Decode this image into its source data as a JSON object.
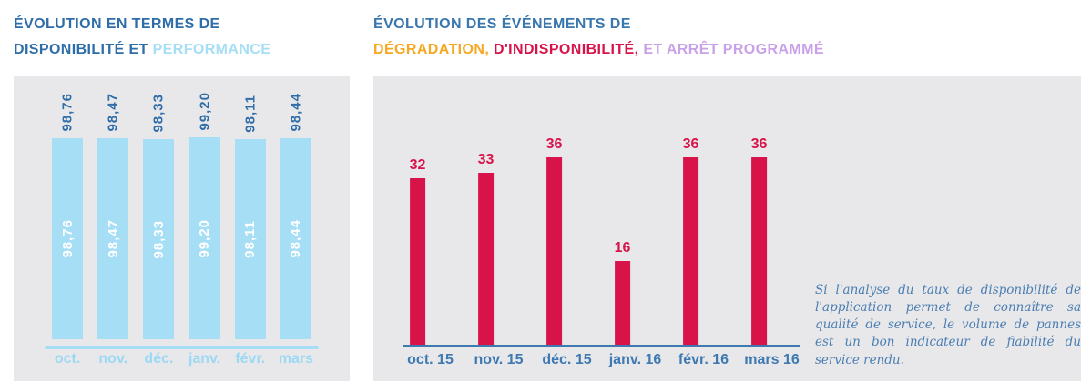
{
  "titles": {
    "left": {
      "line1": "ÉVOLUTION EN TERMES DE",
      "line2_dark": "DISPONIBILITÉ ET ",
      "line2_light": "PERFORMANCE"
    },
    "right": {
      "line1": "ÉVOLUTION DES ÉVÉNEMENTS DE",
      "seg_orange": "DÉGRADATION, ",
      "seg_red": "D'INDISPONIBILITÉ, ",
      "seg_purple": "ET ARRÊT PROGRAMMÉ"
    }
  },
  "chart_data": [
    {
      "type": "bar",
      "title": "ÉVOLUTION EN TERMES DE DISPONIBILITÉ ET PERFORMANCE",
      "categories": [
        "oct.",
        "nov.",
        "déc.",
        "janv.",
        "févr.",
        "mars"
      ],
      "values": [
        98.76,
        98.47,
        98.33,
        99.2,
        98.11,
        98.44
      ],
      "value_labels": [
        "98,76",
        "98,47",
        "98,33",
        "99,20",
        "98,11",
        "98,44"
      ],
      "value_label_style": "rotated 90°, repeated above bar in dark blue and inside bar in white",
      "ylim": [
        0,
        100
      ],
      "grid": false,
      "legend": "none",
      "bar_color": "#a6def5",
      "value_label_color": "#2f6da9",
      "inside_label_color": "#ffffff",
      "axis_line_color": "#a6def5",
      "tick_label_color": "#9bd9f4"
    },
    {
      "type": "bar",
      "title": "ÉVOLUTION DES ÉVÉNEMENTS DE DÉGRADATION, D'INDISPONIBILITÉ, ET ARRÊT PROGRAMMÉ",
      "categories": [
        "oct. 15",
        "nov. 15",
        "déc. 15",
        "janv. 16",
        "févr. 16",
        "mars 16"
      ],
      "values": [
        32,
        33,
        36,
        16,
        36,
        36
      ],
      "value_labels": [
        "32",
        "33",
        "36",
        "16",
        "36",
        "36"
      ],
      "value_label_style": "horizontal, above bar, red bold",
      "ylim": [
        0,
        40
      ],
      "grid": false,
      "legend": "none",
      "bar_color": "#d8134a",
      "value_label_color": "#d8134a",
      "axis_line_color": "#3e79b2",
      "tick_label_color": "#3e79b2"
    }
  ],
  "note": {
    "text": "Si l'analyse du taux de disponibilité de l'application permet de connaître sa qualité de service, le volume de pannes est un bon indicateur de fiabilité du service rendu."
  },
  "colors": {
    "panel_bg": "#e8e8ea",
    "dark_blue": "#2f6da9",
    "steel_blue": "#3e79b2",
    "light_blue": "#a6def5",
    "red": "#d8134a",
    "orange": "#f7a823",
    "purple": "#c9a1e8",
    "note_blue": "#4a7eb2"
  }
}
